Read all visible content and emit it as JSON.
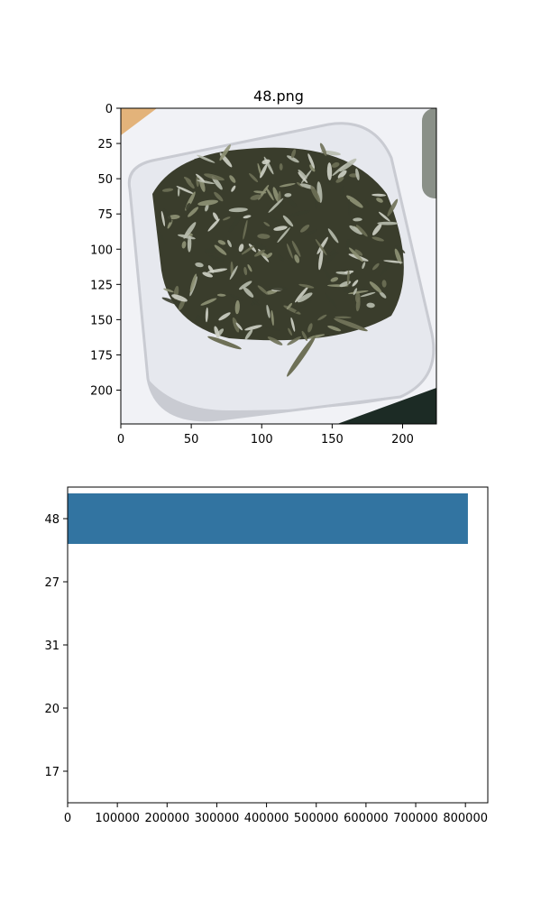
{
  "chart_data": [
    {
      "type": "image",
      "title": "48.png",
      "xlim": [
        0,
        224
      ],
      "ylim": [
        224,
        0
      ],
      "x_ticks": [
        0,
        50,
        100,
        150,
        200
      ],
      "y_ticks": [
        0,
        25,
        50,
        75,
        100,
        125,
        150,
        175,
        200
      ],
      "image_content": "dried small fish in a white square dish",
      "colors": {
        "dish": "#e6e8ee",
        "dish_shadow": "#c9cbd2",
        "fish_dark": "#3a3d2c",
        "fish_mid": "#6e7057",
        "fish_light": "#b8bcae",
        "corner_top_left": "#e3b37a",
        "corner_bottom_right": "#1c2b25"
      }
    },
    {
      "type": "bar",
      "orientation": "horizontal",
      "categories": [
        "48",
        "27",
        "31",
        "20",
        "17"
      ],
      "values": [
        805000,
        0,
        0,
        0,
        0
      ],
      "xlim": [
        0,
        845000
      ],
      "x_ticks": [
        0,
        100000,
        200000,
        300000,
        400000,
        500000,
        600000,
        700000,
        800000
      ],
      "bar_color": "#3274a1",
      "grid": false
    }
  ]
}
